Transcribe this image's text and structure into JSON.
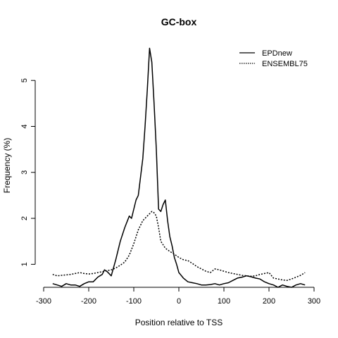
{
  "chart_data": {
    "type": "line",
    "title": "GC-box",
    "xlabel": "Position relative to TSS",
    "ylabel": "Frequency (%)",
    "xlim": [
      -300,
      300
    ],
    "ylim": [
      0.5,
      5.8
    ],
    "xticks": [
      -300,
      -200,
      -100,
      0,
      100,
      200,
      300
    ],
    "xtick_labels": [
      "-300",
      "-200",
      "-100",
      "0",
      "100",
      "200",
      "300"
    ],
    "yticks": [
      1,
      2,
      3,
      4,
      5
    ],
    "ytick_labels": [
      "1",
      "2",
      "3",
      "4",
      "5"
    ],
    "grid": false,
    "legend_position": "top-right",
    "series": [
      {
        "name": "EPDnew",
        "line_style": "solid",
        "color": "#000000",
        "x": [
          -280,
          -270,
          -260,
          -250,
          -240,
          -230,
          -220,
          -210,
          -200,
          -190,
          -180,
          -170,
          -165,
          -160,
          -150,
          -140,
          -130,
          -120,
          -110,
          -105,
          -100,
          -95,
          -90,
          -85,
          -80,
          -75,
          -70,
          -65,
          -60,
          -55,
          -50,
          -45,
          -40,
          -35,
          -30,
          -25,
          -20,
          -15,
          -10,
          -5,
          0,
          10,
          20,
          30,
          40,
          50,
          60,
          70,
          80,
          90,
          100,
          110,
          120,
          130,
          140,
          150,
          160,
          170,
          180,
          190,
          200,
          210,
          220,
          230,
          240,
          250,
          260,
          270,
          280
        ],
        "y": [
          0.58,
          0.55,
          0.52,
          0.58,
          0.55,
          0.55,
          0.52,
          0.58,
          0.62,
          0.62,
          0.72,
          0.78,
          0.88,
          0.85,
          0.75,
          1.1,
          1.5,
          1.8,
          2.05,
          2.0,
          2.2,
          2.4,
          2.5,
          2.9,
          3.3,
          4.0,
          4.8,
          5.7,
          5.4,
          4.5,
          3.5,
          2.2,
          2.15,
          2.3,
          2.4,
          1.95,
          1.6,
          1.4,
          1.15,
          1.0,
          0.82,
          0.7,
          0.62,
          0.6,
          0.58,
          0.55,
          0.55,
          0.56,
          0.58,
          0.55,
          0.58,
          0.6,
          0.65,
          0.7,
          0.72,
          0.75,
          0.73,
          0.7,
          0.68,
          0.62,
          0.58,
          0.55,
          0.5,
          0.55,
          0.52,
          0.5,
          0.55,
          0.58,
          0.55
        ]
      },
      {
        "name": "ENSEMBL75",
        "line_style": "dotted",
        "color": "#000000",
        "x": [
          -280,
          -270,
          -260,
          -250,
          -240,
          -230,
          -220,
          -210,
          -200,
          -190,
          -180,
          -170,
          -160,
          -150,
          -140,
          -130,
          -120,
          -110,
          -100,
          -90,
          -80,
          -70,
          -60,
          -55,
          -50,
          -45,
          -40,
          -30,
          -20,
          -10,
          0,
          10,
          20,
          30,
          40,
          50,
          60,
          70,
          80,
          90,
          100,
          110,
          120,
          130,
          140,
          150,
          160,
          170,
          180,
          190,
          200,
          210,
          220,
          230,
          240,
          250,
          260,
          270,
          280
        ],
        "y": [
          0.78,
          0.75,
          0.76,
          0.77,
          0.78,
          0.8,
          0.82,
          0.8,
          0.79,
          0.8,
          0.82,
          0.84,
          0.86,
          0.88,
          0.92,
          0.98,
          1.05,
          1.2,
          1.45,
          1.75,
          1.95,
          2.05,
          2.15,
          2.12,
          2.05,
          1.8,
          1.5,
          1.35,
          1.28,
          1.22,
          1.15,
          1.1,
          1.08,
          1.02,
          0.95,
          0.9,
          0.85,
          0.82,
          0.9,
          0.88,
          0.85,
          0.82,
          0.8,
          0.78,
          0.76,
          0.75,
          0.74,
          0.75,
          0.78,
          0.8,
          0.82,
          0.7,
          0.68,
          0.66,
          0.65,
          0.68,
          0.72,
          0.76,
          0.82
        ]
      }
    ]
  }
}
